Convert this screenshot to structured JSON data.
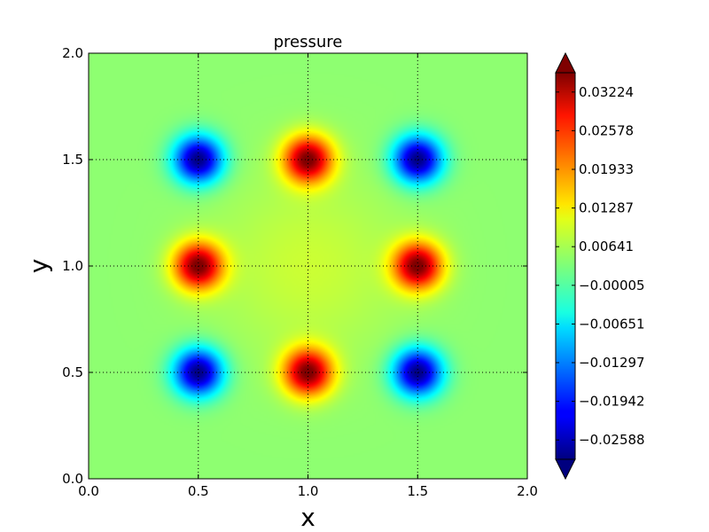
{
  "chart_data": {
    "type": "heatmap",
    "subtype": "filled-contour",
    "title": "pressure",
    "xlabel": "x",
    "ylabel": "y",
    "xlim": [
      0.0,
      2.0
    ],
    "ylim": [
      0.0,
      2.0
    ],
    "xticks": [
      "0.0",
      "0.5",
      "1.0",
      "1.5",
      "2.0"
    ],
    "yticks": [
      "0.0",
      "0.5",
      "1.0",
      "1.5",
      "2.0"
    ],
    "grid": true,
    "grid_style": "dotted",
    "colormap": "jet",
    "colorbar": {
      "placement": "right",
      "extend": "both",
      "min": -0.02588,
      "max": 0.03224,
      "ticks": [
        "0.03224",
        "0.02578",
        "0.01933",
        "0.01287",
        "0.00641",
        "−0.00005",
        "−0.00651",
        "−0.01297",
        "−0.01942",
        "−0.02588"
      ]
    },
    "field": {
      "background": 0.004,
      "extrema": [
        {
          "x": 0.5,
          "y": 1.5,
          "value": -0.02588
        },
        {
          "x": 1.0,
          "y": 1.5,
          "value": 0.03224
        },
        {
          "x": 1.5,
          "y": 1.5,
          "value": -0.02588
        },
        {
          "x": 0.5,
          "y": 1.0,
          "value": 0.03224
        },
        {
          "x": 1.5,
          "y": 1.0,
          "value": 0.03224
        },
        {
          "x": 0.5,
          "y": 0.5,
          "value": -0.02588
        },
        {
          "x": 1.0,
          "y": 0.5,
          "value": 0.03224
        },
        {
          "x": 1.5,
          "y": 0.5,
          "value": -0.02588
        }
      ]
    }
  }
}
